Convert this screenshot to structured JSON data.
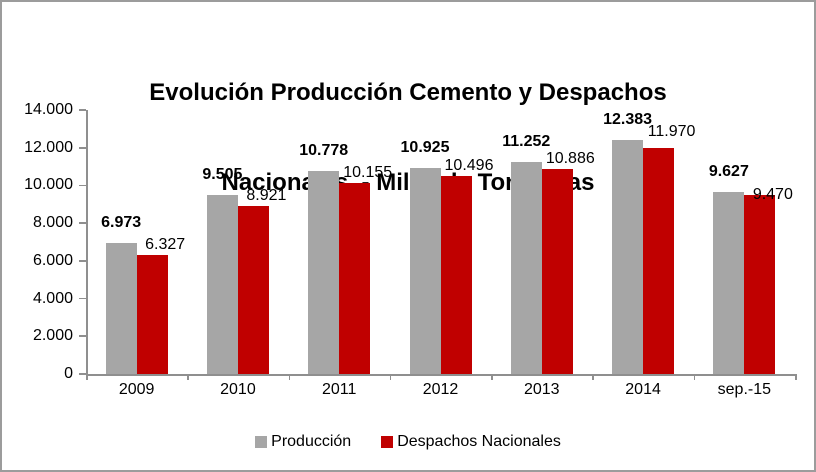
{
  "title": {
    "line1": "Evolución Producción Cemento y Despachos",
    "line2": "Nacionales  - Miles de Toneladas"
  },
  "chart_data": {
    "type": "bar",
    "title": "Evolución Producción Cemento y Despachos Nacionales - Miles de Toneladas",
    "categories": [
      "2009",
      "2010",
      "2011",
      "2012",
      "2013",
      "2014",
      "sep.-15"
    ],
    "series": [
      {
        "name": "Producción",
        "color": "#a6a6a6",
        "values": [
          6973,
          9505,
          10778,
          10925,
          11252,
          12383,
          9627
        ],
        "labels": [
          "6.973",
          "9.505",
          "10.778",
          "10.925",
          "11.252",
          "12.383",
          "9.627"
        ],
        "label_bold": true,
        "label_dy": [
          0,
          0,
          0,
          0,
          0,
          0,
          0
        ]
      },
      {
        "name": "Despachos Nacionales",
        "color": "#c00000",
        "values": [
          6327,
          8921,
          10155,
          10496,
          10886,
          11970,
          9470
        ],
        "labels": [
          "6.327",
          "8.921",
          "10.155",
          "10.496",
          "10.886",
          "11.970",
          "9.470"
        ],
        "label_bold": false,
        "label_dy": [
          0,
          0,
          0,
          0,
          0,
          -6,
          10
        ]
      }
    ],
    "y_axis": {
      "min": 0,
      "max": 14000,
      "step": 2000,
      "tick_labels": [
        "0",
        "2.000",
        "4.000",
        "6.000",
        "8.000",
        "10.000",
        "12.000",
        "14.000"
      ]
    },
    "grid": false,
    "legend_position": "bottom",
    "axis_color": "#8f8f8f"
  }
}
